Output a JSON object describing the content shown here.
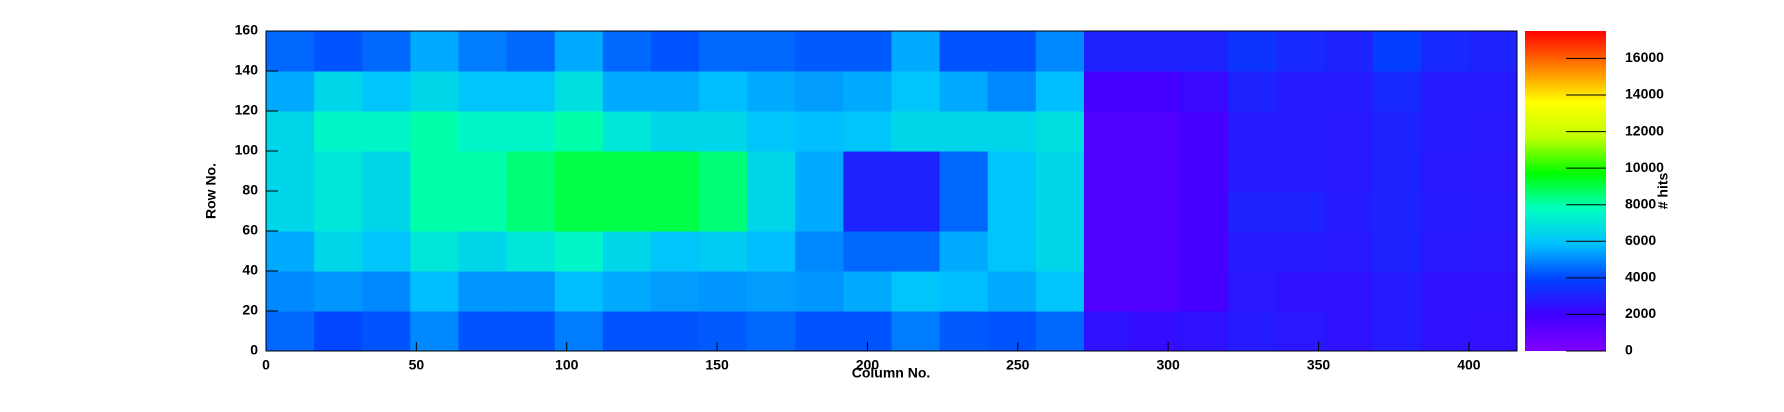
{
  "chart_data": {
    "type": "heatmap",
    "x_label": "Column No.",
    "y_label": "Row No.",
    "z_label": "# hits",
    "xbins": [
      0,
      16,
      32,
      48,
      64,
      80,
      96,
      112,
      128,
      144,
      160,
      176,
      192,
      208,
      224,
      240,
      256,
      272,
      288,
      304,
      320,
      336,
      352,
      368,
      384,
      400,
      416
    ],
    "ybins": [
      0,
      20,
      40,
      60,
      80,
      100,
      120,
      140,
      160
    ],
    "z": [
      [
        4500,
        4000,
        4200,
        5000,
        4200,
        4200,
        4800,
        4200,
        4200,
        4300,
        4500,
        4200,
        4200,
        4800,
        4300,
        4200,
        4500,
        2500,
        2300,
        2500,
        2800,
        2600,
        2500,
        2800,
        2500,
        2400
      ],
      [
        5000,
        5200,
        5000,
        5800,
        5200,
        5200,
        5800,
        5500,
        5300,
        5200,
        5300,
        5200,
        5500,
        6000,
        5800,
        5500,
        6000,
        1500,
        1500,
        1800,
        2600,
        2500,
        2500,
        2800,
        2500,
        2500
      ],
      [
        5500,
        6500,
        6000,
        7000,
        6500,
        7000,
        7500,
        6500,
        6000,
        6200,
        5800,
        5000,
        4500,
        4500,
        5500,
        6000,
        6500,
        1500,
        1500,
        1800,
        2800,
        2800,
        2700,
        3000,
        2700,
        2600
      ],
      [
        6500,
        7000,
        6500,
        8000,
        8000,
        8500,
        9000,
        9000,
        9000,
        8500,
        6500,
        5500,
        3000,
        3000,
        4500,
        6000,
        6500,
        1500,
        1500,
        1800,
        3000,
        3000,
        2800,
        3000,
        2800,
        2700
      ],
      [
        6500,
        7000,
        6500,
        8000,
        8000,
        8500,
        9000,
        9000,
        9000,
        8500,
        6500,
        5500,
        3000,
        3000,
        4500,
        6000,
        6500,
        1500,
        1500,
        1800,
        2800,
        2800,
        2700,
        3000,
        2700,
        2600
      ],
      [
        6500,
        7500,
        7500,
        8000,
        7500,
        7500,
        8000,
        7000,
        6500,
        6500,
        6000,
        5800,
        6000,
        6500,
        6500,
        6500,
        6800,
        1500,
        1500,
        1800,
        2800,
        2800,
        2700,
        3000,
        2800,
        2700
      ],
      [
        5500,
        6500,
        6000,
        6500,
        6000,
        6000,
        6800,
        5500,
        5500,
        5800,
        5500,
        5300,
        5500,
        6000,
        5500,
        5000,
        5800,
        1800,
        1800,
        2200,
        3000,
        2800,
        2800,
        3200,
        2800,
        2800
      ],
      [
        4500,
        4200,
        4500,
        5500,
        4800,
        4500,
        5500,
        4500,
        4200,
        4500,
        4500,
        4300,
        4300,
        5500,
        4200,
        4200,
        5000,
        3000,
        3000,
        3000,
        3500,
        3200,
        3000,
        3800,
        3200,
        3000
      ]
    ],
    "xlim": [
      0,
      416
    ],
    "ylim": [
      0,
      160
    ],
    "zlim": [
      0,
      17500
    ],
    "xticks": [
      0,
      50,
      100,
      150,
      200,
      250,
      300,
      350,
      400
    ],
    "yticks": [
      0,
      20,
      40,
      60,
      80,
      100,
      120,
      140,
      160
    ],
    "zticks": [
      0,
      2000,
      4000,
      6000,
      8000,
      10000,
      12000,
      14000,
      16000
    ],
    "colorscale": [
      "#8000ff",
      "#4000ff",
      "#0040ff",
      "#00c0ff",
      "#00ffc0",
      "#00ff00",
      "#c0ff00",
      "#ffff00",
      "#ff8000",
      "#ff0000"
    ]
  }
}
